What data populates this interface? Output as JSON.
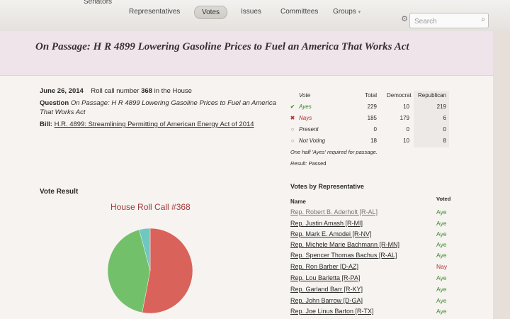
{
  "nav": {
    "items": [
      "Senators",
      "Representatives",
      "Votes",
      "Issues",
      "Committees",
      "Groups"
    ],
    "groups_caret": "▾",
    "search_placeholder": "Search"
  },
  "page": {
    "title": "On Passage: H R 4899 Lowering Gasoline Prices to Fuel an America That Works Act"
  },
  "vote_info": {
    "date": "June 26, 2014",
    "roll_call_prefix": "Roll call number",
    "roll_call_number": "368",
    "roll_call_suffix": "in the House",
    "question_label": "Question",
    "question_text": "On Passage: H R 4899 Lowering Gasoline Prices to Fuel an America That Works Act",
    "bill_label": "Bill:",
    "bill_link": "H.R. 4899: Streamlining Permitting of American Energy Act of 2014"
  },
  "vote_table": {
    "headers": {
      "vote": "Vote",
      "total": "Total",
      "dem": "Democrat",
      "rep": "Republican"
    },
    "rows": [
      {
        "icon": "✔",
        "label": "Ayes",
        "total": "229",
        "dem": "10",
        "rep": "219"
      },
      {
        "icon": "✖",
        "label": "Nays",
        "total": "185",
        "dem": "179",
        "rep": "6"
      },
      {
        "icon": "○",
        "label": "Present",
        "total": "0",
        "dem": "0",
        "rep": "0"
      },
      {
        "icon": "○",
        "label": "Not Voting",
        "total": "18",
        "dem": "10",
        "rep": "8"
      }
    ],
    "note": "One half 'Ayes' required for passage.",
    "result_label": "Result:",
    "result_value": "Passed"
  },
  "vote_result": {
    "section_title": "Vote Result",
    "chart_title": "House Roll Call #368"
  },
  "chart_data": {
    "type": "pie",
    "title": "House Roll Call #368",
    "slices": [
      {
        "label": "Ayes",
        "value": 229,
        "color": "#d9625a"
      },
      {
        "label": "Nays",
        "value": 185,
        "color": "#73c06a"
      },
      {
        "label": "Not Voting",
        "value": 18,
        "color": "#6ec7c0"
      }
    ]
  },
  "reps": {
    "section_title": "Votes by Representative",
    "name_header": "Name",
    "voted_header": "Voted",
    "rows": [
      {
        "name": "Rep. Robert B. Aderholt [R-AL]",
        "vote": "Aye"
      },
      {
        "name": "Rep. Justin Amash [R-MI]",
        "vote": "Aye"
      },
      {
        "name": "Rep. Mark E. Amodei [R-NV]",
        "vote": "Aye"
      },
      {
        "name": "Rep. Michele Marie Bachmann [R-MN]",
        "vote": "Aye"
      },
      {
        "name": "Rep. Spencer Thomas Bachus [R-AL]",
        "vote": "Aye"
      },
      {
        "name": "Rep. Ron Barber [D-AZ]",
        "vote": "Nay"
      },
      {
        "name": "Rep. Lou Barletta [R-PA]",
        "vote": "Aye"
      },
      {
        "name": "Rep. Garland Barr [R-KY]",
        "vote": "Aye"
      },
      {
        "name": "Rep. John Barrow [D-GA]",
        "vote": "Aye"
      },
      {
        "name": "Rep. Joe Linus Barton [R-TX]",
        "vote": "Aye"
      }
    ]
  }
}
